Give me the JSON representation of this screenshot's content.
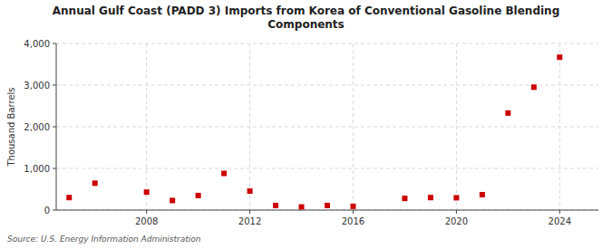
{
  "chart_data": {
    "type": "scatter",
    "title": "Annual Gulf Coast (PADD 3) Imports from Korea of Conventional Gasoline Blending\nComponents",
    "y_label": "Thousand Barrels",
    "annotations": [
      "Source: U.S. Energy Information Administration"
    ],
    "x": [
      2005,
      2006,
      2008,
      2009,
      2010,
      2011,
      2012,
      2013,
      2014,
      2015,
      2016,
      2018,
      2019,
      2020,
      2021,
      2022,
      2023,
      2024
    ],
    "values": [
      300,
      645,
      430,
      230,
      350,
      880,
      455,
      110,
      75,
      110,
      90,
      280,
      300,
      295,
      370,
      2330,
      2950,
      3670
    ],
    "color": "#cc0000",
    "marker": "square",
    "xlim": [
      2004.5,
      2025.5
    ],
    "ylim": [
      0,
      4000
    ],
    "xticks": [
      2008,
      2012,
      2016,
      2020,
      2024
    ],
    "yticks": [
      0,
      {
        "value": 1000,
        "label": "1,000"
      },
      {
        "value": 2000,
        "label": "2,000"
      },
      {
        "value": 3000,
        "label": "3,000"
      },
      {
        "value": 4000,
        "label": "4,000"
      }
    ],
    "grid": true
  }
}
